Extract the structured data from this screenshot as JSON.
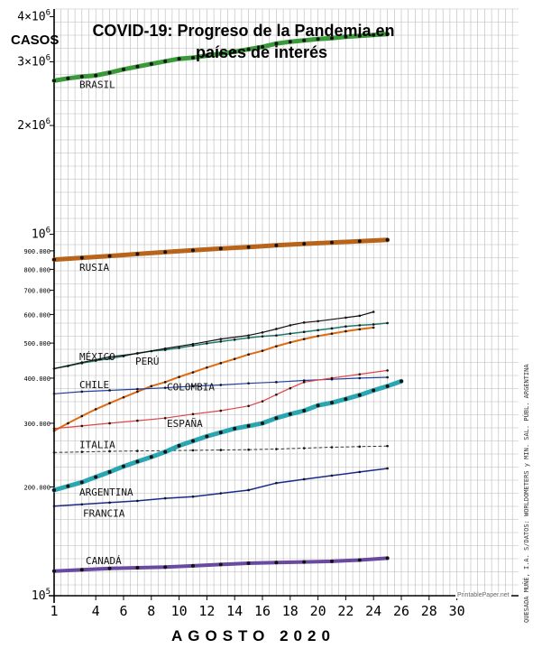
{
  "chart_data": {
    "type": "line",
    "title": "COVID-19: Progreso de la Pandemia en",
    "title_line2": "países de interés",
    "ylabel": "CASOS",
    "xlabel": "AGOSTO 2020",
    "y_scale": "log",
    "ylim": [
      100000,
      4200000
    ],
    "xlim": [
      1,
      31
    ],
    "x_ticks": [
      1,
      4,
      6,
      8,
      10,
      12,
      14,
      16,
      18,
      20,
      22,
      24,
      26,
      28,
      30
    ],
    "y_ticks": [
      {
        "value": 100000,
        "label": "10^5"
      },
      {
        "value": 200000,
        "label": "200.000"
      },
      {
        "value": 300000,
        "label": "300.000"
      },
      {
        "value": 400000,
        "label": "400.000"
      },
      {
        "value": 500000,
        "label": "500.000"
      },
      {
        "value": 600000,
        "label": "600.000"
      },
      {
        "value": 700000,
        "label": "700.000"
      },
      {
        "value": 800000,
        "label": "800.000"
      },
      {
        "value": 900000,
        "label": "900.000"
      },
      {
        "value": 1000000,
        "label": "10^6"
      },
      {
        "value": 2000000,
        "label": "2×10^6"
      },
      {
        "value": 3000000,
        "label": "3×10^6"
      },
      {
        "value": 4000000,
        "label": "4×10^6"
      }
    ],
    "grid": true,
    "series": [
      {
        "name": "BRASIL",
        "color": "#3a9a3a",
        "thick": 5,
        "x": [
          1,
          2,
          3,
          4,
          5,
          6,
          7,
          8,
          9,
          10,
          11,
          12,
          13,
          14,
          15,
          16,
          17,
          18,
          19,
          20,
          21,
          22,
          23,
          24,
          25
        ],
        "values": [
          2660000,
          2700000,
          2730000,
          2750000,
          2800000,
          2860000,
          2910000,
          2960000,
          3010000,
          3060000,
          3080000,
          3120000,
          3160000,
          3200000,
          3250000,
          3300000,
          3370000,
          3410000,
          3440000,
          3470000,
          3490000,
          3520000,
          3540000,
          3560000,
          3580000
        ]
      },
      {
        "name": "RUSIA",
        "color": "#b8651b",
        "thick": 5,
        "x": [
          1,
          3,
          5,
          7,
          9,
          11,
          13,
          15,
          17,
          19,
          21,
          23,
          25
        ],
        "values": [
          851000,
          861000,
          871000,
          882000,
          893000,
          903000,
          913000,
          922000,
          932000,
          941000,
          949000,
          957000,
          965000
        ]
      },
      {
        "name": "MÉXICO",
        "color": "#1f7a6a",
        "thick": 1.5,
        "x": [
          1,
          2,
          3,
          4,
          5,
          6,
          7,
          8,
          9,
          10,
          11,
          12,
          13,
          14,
          15,
          16,
          17,
          18,
          19,
          20,
          21,
          22,
          23,
          24,
          25
        ],
        "values": [
          425000,
          432000,
          440000,
          447000,
          453000,
          460000,
          469000,
          475000,
          479000,
          485000,
          492000,
          499000,
          505000,
          511000,
          517000,
          522000,
          525000,
          531000,
          537000,
          543000,
          549000,
          556000,
          560000,
          563000,
          568000
        ]
      },
      {
        "name": "PERÚ",
        "color": "#111111",
        "thick": 1.2,
        "x": [
          1,
          3,
          5,
          7,
          9,
          11,
          13,
          15,
          16,
          17,
          18,
          19,
          20,
          22,
          23,
          24
        ],
        "values": [
          425000,
          442000,
          458000,
          468000,
          483000,
          497000,
          513000,
          525000,
          535000,
          547000,
          560000,
          570000,
          575000,
          588000,
          595000,
          610000
        ]
      },
      {
        "name": "COLOMBIA",
        "color": "#e06a10",
        "thick": 2,
        "x": [
          1,
          2,
          3,
          4,
          5,
          6,
          7,
          8,
          9,
          10,
          11,
          12,
          13,
          14,
          15,
          16,
          17,
          18,
          19,
          20,
          21,
          22,
          23,
          24
        ],
        "values": [
          286000,
          300000,
          314000,
          328000,
          341000,
          354000,
          367000,
          380000,
          390000,
          403000,
          415000,
          428000,
          440000,
          452000,
          465000,
          476000,
          490000,
          502000,
          513000,
          523000,
          531000,
          539000,
          546000,
          552000
        ]
      },
      {
        "name": "CHILE",
        "color": "#1f3fa0",
        "thick": 1.2,
        "x": [
          1,
          3,
          5,
          7,
          9,
          11,
          13,
          15,
          17,
          19,
          21,
          23,
          25
        ],
        "values": [
          362000,
          367000,
          370000,
          373000,
          376000,
          380000,
          383000,
          387000,
          390000,
          394000,
          397000,
          400000,
          402000
        ]
      },
      {
        "name": "ESPAÑA",
        "color": "#e04444",
        "thick": 1.2,
        "x": [
          1,
          3,
          5,
          7,
          9,
          11,
          13,
          15,
          16,
          17,
          18,
          19,
          21,
          23,
          25
        ],
        "values": [
          290000,
          295000,
          300000,
          305000,
          310000,
          318000,
          325000,
          335000,
          345000,
          360000,
          375000,
          390000,
          400000,
          410000,
          420000
        ]
      },
      {
        "name": "ITALIA",
        "color": "#333333",
        "thick": 1,
        "dashed": true,
        "x": [
          1,
          3,
          5,
          7,
          9,
          11,
          13,
          15,
          17,
          19,
          21,
          23,
          25
        ],
        "values": [
          249000,
          250000,
          251000,
          251500,
          252000,
          252500,
          253000,
          253500,
          254500,
          256000,
          257500,
          258500,
          259500
        ]
      },
      {
        "name": "ARGENTINA",
        "color": "#2aa6b0",
        "thick": 5,
        "x": [
          1,
          2,
          3,
          4,
          5,
          6,
          7,
          8,
          9,
          10,
          11,
          12,
          13,
          14,
          15,
          16,
          17,
          18,
          19,
          20,
          21,
          22,
          23,
          24,
          25,
          26
        ],
        "values": [
          196000,
          201000,
          206000,
          213000,
          220000,
          228000,
          235000,
          242000,
          250000,
          260000,
          268000,
          276000,
          283000,
          290000,
          295000,
          300000,
          310000,
          318000,
          325000,
          336000,
          342000,
          350000,
          359000,
          370000,
          380000,
          392000
        ]
      },
      {
        "name": "FRANCIA",
        "color": "#1a2a8a",
        "thick": 1.5,
        "x": [
          1,
          3,
          5,
          7,
          9,
          11,
          13,
          15,
          17,
          19,
          21,
          23,
          25
        ],
        "values": [
          177000,
          179000,
          181000,
          183000,
          186000,
          188000,
          192000,
          196000,
          205000,
          210000,
          215000,
          220000,
          225000
        ]
      },
      {
        "name": "CANADÁ",
        "color": "#6a4aa0",
        "thick": 4,
        "x": [
          1,
          3,
          5,
          7,
          9,
          11,
          13,
          15,
          17,
          19,
          21,
          23,
          25
        ],
        "values": [
          117000,
          118000,
          119000,
          119500,
          120000,
          121000,
          122000,
          123000,
          123500,
          124000,
          124500,
          125500,
          127000
        ]
      }
    ]
  },
  "note": "QUESADA MUÑÉ, I.A. S/DATOS: WORLDOMETERS y MIN. SAL. PÚBL. ARGENTINA",
  "watermark": "PrintablePaper.net"
}
